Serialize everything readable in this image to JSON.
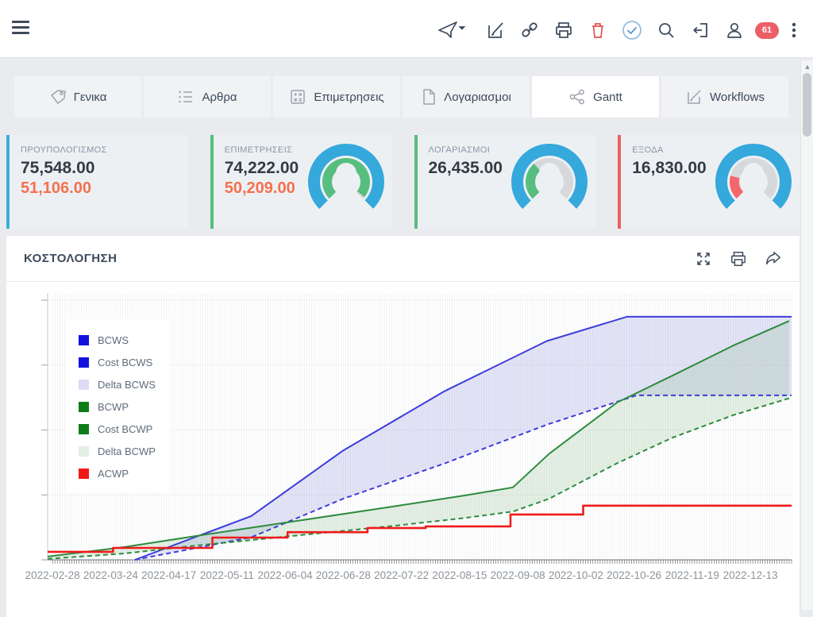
{
  "toolbar": {
    "badge_count": "61",
    "icons": [
      "send",
      "edit",
      "link",
      "print",
      "trash",
      "check-circle",
      "search",
      "logout",
      "user",
      "badge",
      "kebab"
    ]
  },
  "tabs": [
    {
      "label": "Γενικα",
      "icon": "tag-icon",
      "active": false
    },
    {
      "label": "Αρθρα",
      "icon": "list-icon",
      "active": false
    },
    {
      "label": "Επιμετρησεις",
      "icon": "calculator-icon",
      "active": false
    },
    {
      "label": "Λογαριασμοι",
      "icon": "document-icon",
      "active": false
    },
    {
      "label": "Gantt",
      "icon": "share-nodes-icon",
      "active": true
    },
    {
      "label": "Workflows",
      "icon": "edit-icon",
      "active": false
    }
  ],
  "cards": [
    {
      "label": "ΠΡΟΥΠΟΛΟΓΙΣΜΟΣ",
      "value": "75,548.00",
      "value2": "51,106.00",
      "accent": "#3bafda",
      "gauge": null
    },
    {
      "label": "ΕΠΙΜΕΤΡΗΣΕΙΣ",
      "value": "74,222.00",
      "value2": "50,209.00",
      "accent": "#56bd7e",
      "gauge": {
        "fraction": 0.982,
        "color": "#57be80",
        "outer": "#35a8dc",
        "track": "#d6d8db"
      }
    },
    {
      "label": "ΛΟΓΑΡΙΑΣΜΟΙ",
      "value": "26,435.00",
      "value2": "",
      "accent": "#56bd7e",
      "gauge": {
        "fraction": 0.35,
        "color": "#57be80",
        "outer": "#35a8dc",
        "track": "#d6d8db"
      }
    },
    {
      "label": "ΕΞΟΔΑ",
      "value": "16,830.00",
      "value2": "",
      "accent": "#ed5f5f",
      "gauge": {
        "fraction": 0.223,
        "color": "#f4666e",
        "outer": "#35a8dc",
        "track": "#d6d8db"
      }
    }
  ],
  "panel": {
    "title": "ΚΟΣΤΟΛΟΓΗΣΗ",
    "icons": [
      "expand",
      "print",
      "share"
    ]
  },
  "chart_data": {
    "type": "line",
    "title": "ΚΟΣΤΟΛΟΓΗΣΗ",
    "x_axis": "dates (day index relative to 2022-02-28)",
    "x_tick_labels": [
      "2022-02-28",
      "2022-03-24",
      "2022-04-17",
      "2022-05-11",
      "2022-06-04",
      "2022-06-28",
      "2022-07-22",
      "2022-08-15",
      "2022-09-08",
      "2022-10-02",
      "2022-10-26",
      "2022-11-19",
      "2022-12-13"
    ],
    "x_tick_interval_days": 24,
    "x_domain": [
      -2,
      305
    ],
    "ylim": [
      0,
      80700
    ],
    "y_ticks": [
      0,
      20175,
      40350,
      60525,
      80700
    ],
    "grid": "daily vertical lines, faint horizontal lines, y tick labels hidden",
    "legend_position": "top-left overlay",
    "series": [
      {
        "name": "BCWS",
        "color": "#3d3ddb",
        "style": "solid",
        "points": [
          [
            34,
            0
          ],
          [
            82,
            13600
          ],
          [
            120,
            34000
          ],
          [
            162,
            52500
          ],
          [
            204,
            68000
          ],
          [
            237,
            75548
          ],
          [
            305,
            75548
          ]
        ]
      },
      {
        "name": "Cost BCWS",
        "color": "#3d3ddb",
        "style": "dashed",
        "points": [
          [
            34,
            0
          ],
          [
            82,
            7000
          ],
          [
            120,
            19000
          ],
          [
            162,
            30000
          ],
          [
            204,
            42000
          ],
          [
            241,
            51106
          ],
          [
            305,
            51106
          ]
        ]
      },
      {
        "name": "Delta BCWS",
        "type": "band",
        "between": [
          "BCWS",
          "Cost BCWS"
        ],
        "fill": "#8282dc",
        "fill_opacity": 0.22
      },
      {
        "name": "BCWP",
        "color": "#2e8b3f",
        "style": "solid",
        "points": [
          [
            -2,
            1000
          ],
          [
            30,
            4000
          ],
          [
            60,
            7500
          ],
          [
            100,
            12000
          ],
          [
            140,
            16500
          ],
          [
            170,
            20000
          ],
          [
            190,
            22500
          ],
          [
            205,
            33000
          ],
          [
            233,
            48900
          ],
          [
            256,
            57300
          ],
          [
            281,
            66600
          ],
          [
            304,
            74222
          ]
        ]
      },
      {
        "name": "Cost BCWP",
        "color": "#2e8b3f",
        "style": "dashed",
        "points": [
          [
            -2,
            300
          ],
          [
            30,
            2000
          ],
          [
            60,
            4500
          ],
          [
            100,
            7500
          ],
          [
            140,
            10500
          ],
          [
            170,
            13000
          ],
          [
            190,
            15000
          ],
          [
            205,
            19000
          ],
          [
            233,
            30000
          ],
          [
            256,
            38000
          ],
          [
            281,
            45000
          ],
          [
            304,
            50209
          ]
        ]
      },
      {
        "name": "Delta BCWP",
        "type": "band",
        "between": [
          "BCWP",
          "Cost BCWP"
        ],
        "fill": "#7ab47a",
        "fill_opacity": 0.2
      },
      {
        "name": "ACWP",
        "color": "#ef1a1a",
        "style": "step",
        "points": [
          [
            -2,
            2500
          ],
          [
            25,
            3700
          ],
          [
            66,
            6900
          ],
          [
            97,
            8600
          ],
          [
            130,
            9900
          ],
          [
            154,
            10400
          ],
          [
            189,
            14100
          ],
          [
            219,
            16830
          ],
          [
            305,
            16830
          ]
        ]
      }
    ],
    "legend": [
      {
        "label": "BCWS",
        "color": "#1212e0"
      },
      {
        "label": "Cost BCWS",
        "color": "#1212e0"
      },
      {
        "label": "Delta BCWS",
        "color": "#dcdcf7"
      },
      {
        "label": "BCWP",
        "color": "#0e7d17"
      },
      {
        "label": "Cost BCWP",
        "color": "#0e7d17"
      },
      {
        "label": "Delta BCWP",
        "color": "#e2efe2"
      },
      {
        "label": "ACWP",
        "color": "#f51616"
      }
    ]
  }
}
